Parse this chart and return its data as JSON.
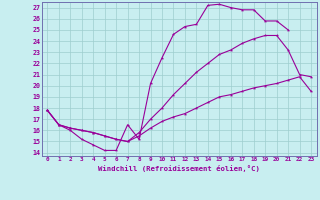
{
  "xlabel": "Windchill (Refroidissement éolien,°C)",
  "bg_color": "#c8eef0",
  "grid_color": "#9ecece",
  "line_color": "#990099",
  "border_color": "#7070b0",
  "xlim": [
    -0.5,
    23.5
  ],
  "ylim": [
    13.7,
    27.5
  ],
  "xticks": [
    0,
    1,
    2,
    3,
    4,
    5,
    6,
    7,
    8,
    9,
    10,
    11,
    12,
    13,
    14,
    15,
    16,
    17,
    18,
    19,
    20,
    21,
    22,
    23
  ],
  "yticks": [
    14,
    15,
    16,
    17,
    18,
    19,
    20,
    21,
    22,
    23,
    24,
    25,
    26,
    27
  ],
  "line1_x": [
    0,
    1,
    2,
    3,
    4,
    5,
    6,
    7,
    8,
    9,
    10,
    11,
    12,
    13,
    14,
    15,
    16,
    17,
    18,
    19,
    20,
    21,
    22
  ],
  "line1_y": [
    17.8,
    16.5,
    16.0,
    15.2,
    14.7,
    14.2,
    14.2,
    16.5,
    15.2,
    20.2,
    22.5,
    24.6,
    25.3,
    25.5,
    27.2,
    27.3,
    27.0,
    26.8,
    26.8,
    25.8,
    25.8,
    25.0,
    null
  ],
  "line2_x": [
    0,
    1,
    2,
    3,
    4,
    5,
    6,
    7,
    8,
    9,
    10,
    11,
    12,
    13,
    14,
    15,
    16,
    17,
    18,
    19,
    20,
    21,
    22,
    23
  ],
  "line2_y": [
    17.8,
    16.5,
    16.2,
    16.0,
    15.8,
    15.5,
    15.2,
    15.0,
    15.8,
    17.0,
    18.0,
    19.2,
    20.2,
    21.2,
    22.0,
    22.8,
    23.2,
    23.8,
    24.2,
    24.5,
    24.5,
    23.2,
    21.0,
    20.8
  ],
  "line3_x": [
    0,
    1,
    2,
    3,
    4,
    5,
    6,
    7,
    8,
    9,
    10,
    11,
    12,
    13,
    14,
    15,
    16,
    17,
    18,
    19,
    20,
    21,
    22,
    23
  ],
  "line3_y": [
    17.8,
    16.5,
    16.2,
    16.0,
    15.8,
    15.5,
    15.2,
    15.0,
    15.5,
    16.2,
    16.8,
    17.2,
    17.5,
    18.0,
    18.5,
    19.0,
    19.2,
    19.5,
    19.8,
    20.0,
    20.2,
    20.5,
    20.8,
    19.5
  ]
}
